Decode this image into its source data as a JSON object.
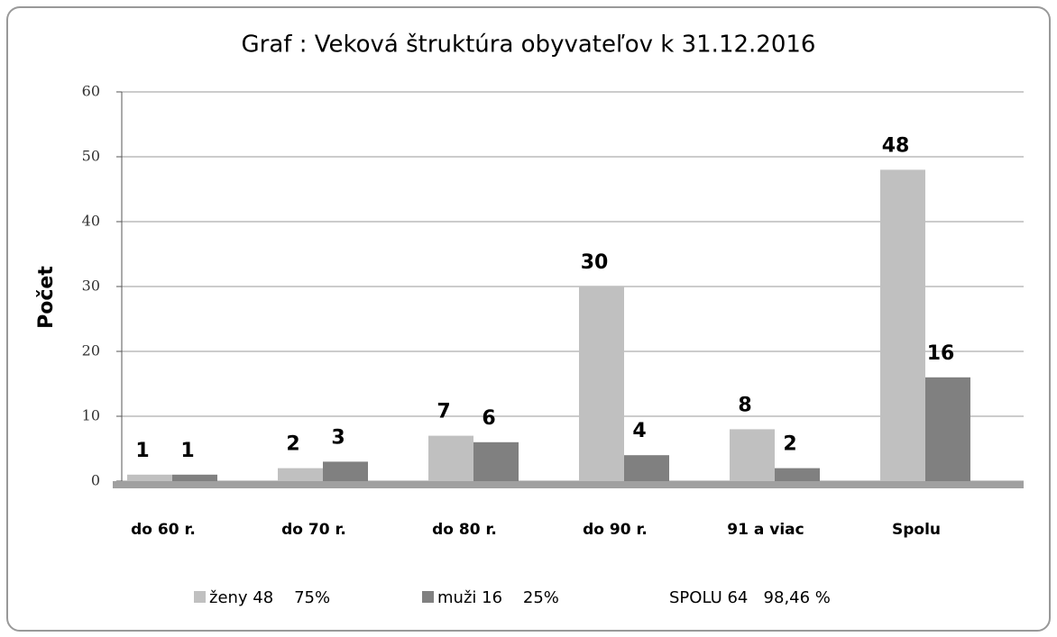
{
  "chart_data": {
    "type": "bar",
    "title": "Graf : Veková štruktúra obyvateľov k 31.12.2016",
    "y_label": "Počet",
    "categories": [
      "do 60 r.",
      "do 70 r.",
      "do 80 r.",
      "do 90 r.",
      "91 a viac",
      "Spolu"
    ],
    "series": [
      {
        "name": "ženy 48    75%",
        "color": "#c0c0c0",
        "values": [
          1,
          2,
          7,
          30,
          8,
          48
        ]
      },
      {
        "name": "muži 16    25%",
        "color": "#808080",
        "values": [
          1,
          3,
          6,
          4,
          2,
          16
        ]
      }
    ],
    "legend_note": "SPOLU 64   98,46 %",
    "ylim": [
      0,
      60
    ],
    "yticks": [
      0,
      10,
      20,
      30,
      40,
      50,
      60
    ],
    "grid": true,
    "legend": "bottom"
  }
}
